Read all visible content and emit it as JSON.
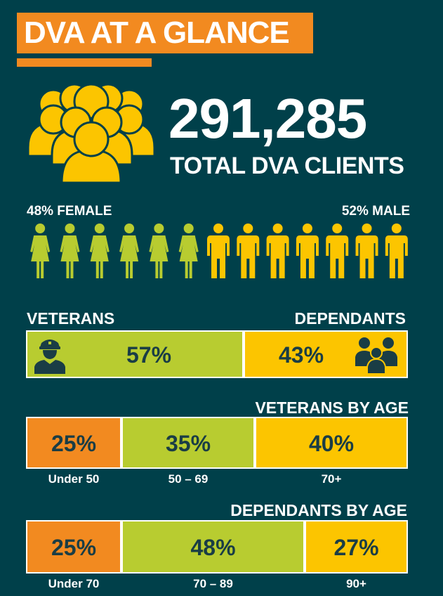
{
  "title": "DVA AT A GLANCE",
  "total": {
    "number": "291,285",
    "label": "TOTAL DVA CLIENTS"
  },
  "gender": {
    "female_label": "48% FEMALE",
    "male_label": "52% MALE",
    "female_icons": 6,
    "male_icons": 7
  },
  "colors": {
    "background": "#00404a",
    "orange": "#f28a20",
    "green": "#b8cc30",
    "yellow": "#fcc500",
    "dark_text": "#1a3d45",
    "white": "#ffffff"
  },
  "chart_data": [
    {
      "type": "bar",
      "title": "",
      "categories": [
        "VETERANS",
        "DEPENDANTS"
      ],
      "values": [
        57,
        43
      ],
      "labels": [
        "57%",
        "43%"
      ],
      "icons": [
        "soldier-icon",
        "family-icon"
      ]
    },
    {
      "type": "bar",
      "title": "VETERANS BY AGE",
      "categories": [
        "Under 50",
        "50 – 69",
        "70+"
      ],
      "values": [
        25,
        35,
        40
      ],
      "labels": [
        "25%",
        "35%",
        "40%"
      ]
    },
    {
      "type": "bar",
      "title": "DEPENDANTS BY AGE",
      "categories": [
        "Under 70",
        "70 – 89",
        "90+"
      ],
      "values": [
        25,
        48,
        27
      ],
      "labels": [
        "25%",
        "48%",
        "27%"
      ]
    }
  ]
}
